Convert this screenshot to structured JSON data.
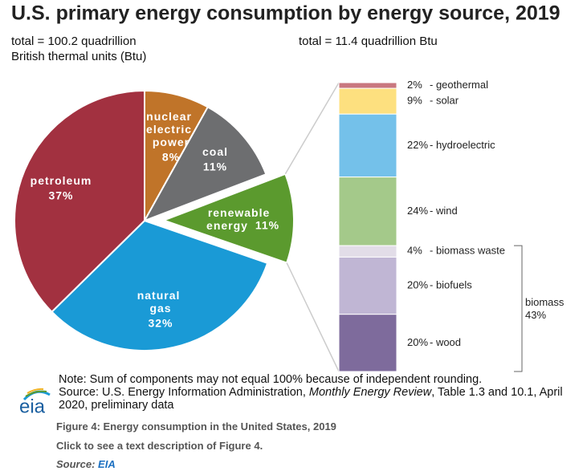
{
  "chart_data": [
    {
      "type": "pie",
      "title": "U.S. primary energy consumption by energy source, 2019",
      "subtitle": "total = 100.2 quadrillion British thermal units (Btu)",
      "categories": [
        "nuclear electric power",
        "coal",
        "renewable energy",
        "natural gas",
        "petroleum"
      ],
      "values": [
        8,
        11,
        11,
        32,
        37
      ],
      "value_labels": [
        "8%",
        "11%",
        "11%",
        "32%",
        "37%"
      ],
      "colors": [
        "#c07429",
        "#6d6e70",
        "#5b9a2e",
        "#1a9ad6",
        "#a23140"
      ],
      "explode": [
        0,
        0,
        1,
        0,
        0
      ]
    },
    {
      "type": "stacked_bar",
      "subtitle": "total = 11.4 quadrillion Btu",
      "ylim": [
        0,
        101
      ],
      "series": [
        {
          "name": "- geothermal",
          "color": "#c9777f",
          "values": [
            2
          ],
          "value_labels": [
            "2%"
          ]
        },
        {
          "name": "- solar",
          "color": "#fde07f",
          "values": [
            9
          ],
          "value_labels": [
            "9%"
          ]
        },
        {
          "name": "- hydroelectric",
          "color": "#74c1ea",
          "values": [
            22
          ],
          "value_labels": [
            "22%"
          ]
        },
        {
          "name": "- wind",
          "color": "#a4c98a",
          "values": [
            24
          ],
          "value_labels": [
            "24%"
          ]
        },
        {
          "name": "- biomass waste",
          "color": "#e2dde8",
          "values": [
            4
          ],
          "value_labels": [
            "4%"
          ]
        },
        {
          "name": "- biofuels",
          "color": "#c0b6d4",
          "values": [
            20
          ],
          "value_labels": [
            "20%"
          ]
        },
        {
          "name": "- wood",
          "color": "#7e6b9c",
          "values": [
            20
          ],
          "value_labels": [
            "20%"
          ]
        }
      ],
      "group": {
        "label": "biomass",
        "value": 43,
        "value_label": "43%"
      }
    }
  ],
  "notes": {
    "note": "Note: Sum of components may not equal 100% because of independent rounding.",
    "source_start": "Source: U.S. Energy Information Administration, ",
    "source_italic": "Monthly Energy Review",
    "source_end": ", Table 1.3 and 10.1, April 2020, preliminary data",
    "logo": "eia"
  },
  "caption": {
    "figure": "Figure 4: Energy consumption in the United States, 2019",
    "link": "Click to see a text description of Figure 4.",
    "source_label": "Source:",
    "source_link": "EIA"
  }
}
